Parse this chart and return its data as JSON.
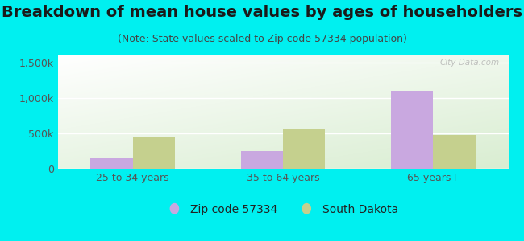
{
  "title": "Breakdown of mean house values by ages of householders",
  "subtitle": "(Note: State values scaled to Zip code 57334 population)",
  "categories": [
    "25 to 34 years",
    "35 to 64 years",
    "65 years+"
  ],
  "zip_values": [
    150000,
    250000,
    1100000
  ],
  "state_values": [
    450000,
    570000,
    480000
  ],
  "zip_color": "#c9a8e0",
  "state_color": "#c5d08e",
  "background_color": "#00f0f0",
  "ylim": [
    0,
    1600000
  ],
  "yticks": [
    0,
    500000,
    1000000,
    1500000
  ],
  "ytick_labels": [
    "0",
    "500k",
    "1,000k",
    "1,500k"
  ],
  "legend_zip_label": "Zip code 57334",
  "legend_state_label": "South Dakota",
  "title_fontsize": 14,
  "subtitle_fontsize": 9,
  "tick_fontsize": 9,
  "legend_fontsize": 10,
  "bar_width": 0.28,
  "watermark": "City-Data.com"
}
